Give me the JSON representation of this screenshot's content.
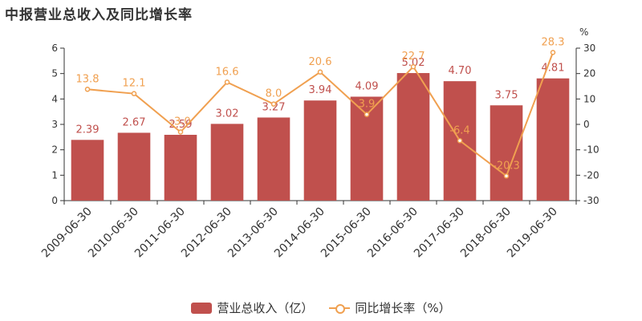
{
  "title": "中报营业总收入及同比增长率",
  "colors": {
    "bar": "#c0504d",
    "line": "#f0a050",
    "axis": "#333333"
  },
  "legend": {
    "bar_label": "营业总收入（亿）",
    "line_label": "同比增长率（%）"
  },
  "right_axis_unit": "%",
  "chart_data": {
    "type": "bar",
    "title": "中报营业总收入及同比增长率",
    "categories": [
      "2009-06-30",
      "2010-06-30",
      "2011-06-30",
      "2012-06-30",
      "2013-06-30",
      "2014-06-30",
      "2015-06-30",
      "2016-06-30",
      "2017-06-30",
      "2018-06-30",
      "2019-06-30"
    ],
    "series": [
      {
        "name": "营业总收入（亿）",
        "type": "bar",
        "axis": "left",
        "values": [
          2.39,
          2.67,
          2.59,
          3.02,
          3.27,
          3.94,
          4.09,
          5.02,
          4.7,
          3.75,
          4.81
        ],
        "labels": [
          "2.39",
          "2.67",
          "2.59",
          "3.02",
          "3.27",
          "3.94",
          "4.09",
          "5.02",
          "4.70",
          "3.75",
          "4.81"
        ]
      },
      {
        "name": "同比增长率（%）",
        "type": "line",
        "axis": "right",
        "values": [
          13.8,
          12.1,
          -3.0,
          16.6,
          8.0,
          20.6,
          3.9,
          22.7,
          -6.4,
          -20.3,
          28.3
        ],
        "labels": [
          "13.8",
          "12.1",
          "-3.0",
          "16.6",
          "8.0",
          "20.6",
          "3.9",
          "22.7",
          "-6.4",
          "-20.3",
          "28.3"
        ]
      }
    ],
    "y_left": {
      "min": 0,
      "max": 6,
      "ticks": [
        "0",
        "1",
        "2",
        "3",
        "4",
        "5",
        "6"
      ]
    },
    "y_right": {
      "min": -30,
      "max": 30,
      "unit": "%",
      "ticks": [
        "-30",
        "-20",
        "-10",
        "0",
        "10",
        "20",
        "30"
      ]
    },
    "grid": false,
    "legend_position": "bottom"
  }
}
